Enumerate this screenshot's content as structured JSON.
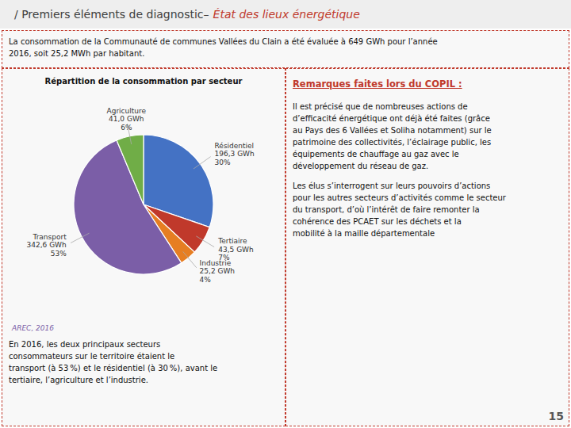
{
  "chart_data": {
    "type": "pie",
    "title": "Répartition de la consommation par secteur",
    "categories": [
      "Résidentiel",
      "Tertiaire",
      "Industrie",
      "Transport",
      "Agriculture"
    ],
    "values": [
      196.3,
      43.5,
      25.2,
      342.6,
      41.0
    ],
    "value_labels": [
      "196,3 GWh\n30%",
      "43,5 GWh\n7%",
      "25,2 GWh\n4%",
      "342,6 GWh\n53%",
      "41,0 GWh\n6%"
    ],
    "colors": [
      "#4472c4",
      "#c0392b",
      "#e67e22",
      "#7b5ea7",
      "#70ad47"
    ],
    "annotations": [
      "/ Premiers éléments de diagnostic–",
      "État des lieux énergétique",
      "La consommation de la Communauté de communes Vallées du Clain a été évaluée à 649 GWh pour l’année",
      "2016, soit 25,2 MWh par habitant.",
      "AREC, 2016",
      "En 2016, les deux principaux secteurs",
      "consommateurs sur le territoire étaient le",
      "transport (à 53 %) et le résidentiel (à 30 %), avant le",
      "tertiaire, l’agriculture et l’industrie.",
      "Remarques faites lors du COPIL :",
      "Il est précisé que de nombreuses actions de",
      "d’efficacité énergétique ont déjà été faites (grâce",
      "au Pays des 6 Vallées et Soliha notamment) sur le",
      "patrimoine des collectivités, l’éclairage public, les",
      "équipements de chauffage au gaz avec le",
      "développement du réseau de gaz.",
      "Les élus s’interrogent sur leurs pouvoirs d’actions",
      "pour les autres secteurs d’activités comme le secteur",
      "du transport, d’où l’intérêt de faire remonter la",
      "cohérence des PCAET sur les déchets et la",
      "mobilité à la maille départementale",
      "15"
    ]
  }
}
